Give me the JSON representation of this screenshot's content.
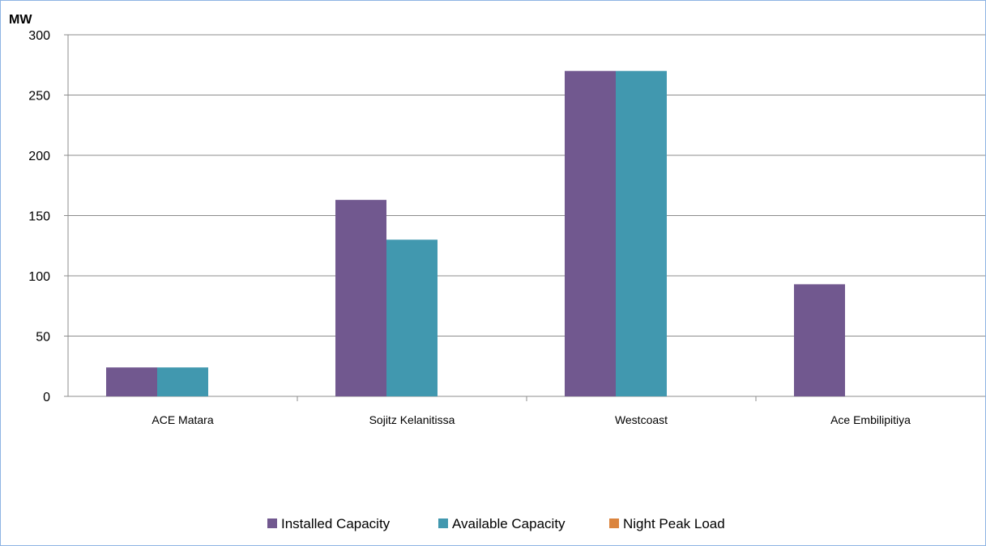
{
  "chart_data": {
    "type": "bar",
    "ylabel": "MW",
    "categories": [
      "ACE Matara",
      "Sojitz Kelanitissa",
      "Westcoast",
      "Ace Embilipitiya"
    ],
    "ylim": [
      0,
      300
    ],
    "yticks": [
      0,
      50,
      100,
      150,
      200,
      250,
      300
    ],
    "grid": true,
    "legend_position": "bottom",
    "series": [
      {
        "name": "Installed Capacity",
        "color": "#71588f",
        "values": [
          24,
          163,
          270,
          93
        ]
      },
      {
        "name": "Available Capacity",
        "color": "#4198af",
        "values": [
          24,
          130,
          270,
          0
        ]
      },
      {
        "name": "Night Peak Load",
        "color": "#db843d",
        "values": [
          0,
          0,
          0,
          0
        ]
      }
    ]
  }
}
